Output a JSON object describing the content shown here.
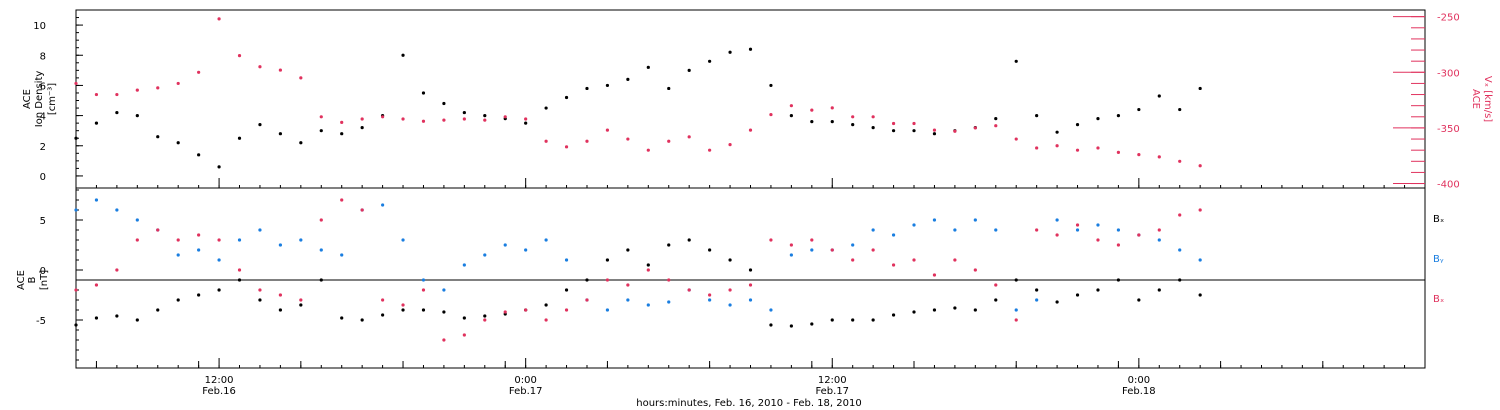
{
  "title": "",
  "colors": {
    "black": "#000000",
    "pink": "#e0325e",
    "blue": "#1a7ee0",
    "axis": "#000000"
  },
  "x_axis": {
    "label": "hours:minutes, Feb. 16, 2010 - Feb. 18, 2010",
    "range_hours": [
      0,
      66
    ],
    "major_ticks": [
      {
        "hour": 7,
        "time": "12:00",
        "date": "Feb.16"
      },
      {
        "hour": 22,
        "time": "0:00",
        "date": "Feb.17"
      },
      {
        "hour": 37,
        "time": "12:00",
        "date": "Feb.17"
      },
      {
        "hour": 52,
        "time": "0:00",
        "date": "Feb.18"
      }
    ]
  },
  "top_panel": {
    "left_axis_title": [
      "ACE",
      "Ion Density",
      "[cm⁻³]"
    ],
    "right_axis_title": [
      "ACE",
      "Vₓ [km/s]"
    ],
    "left_ticks": [
      "0",
      "2",
      "4",
      "6",
      "8",
      "10"
    ],
    "right_ticks": [
      "-250",
      "-300",
      "-350",
      "-400"
    ]
  },
  "bottom_panel": {
    "left_axis_title": [
      "ACE",
      "B",
      "[nT]"
    ],
    "left_ticks": [
      "5",
      "0",
      "-5"
    ],
    "legend": [
      "Bₓ",
      "Bᵧ",
      "Bₓ"
    ]
  },
  "chart_data": [
    {
      "type": "scatter",
      "panel": "top",
      "xlabel": "hours:minutes, Feb. 16, 2010 - Feb. 18, 2010",
      "ylabel": "ACE Ion Density [cm^-3]",
      "ylim": [
        -0.8,
        11
      ],
      "y2label": "ACE Vx [km/s]",
      "y2lim": [
        -404,
        -244
      ],
      "series": [
        {
          "name": "Ion Density",
          "axis": "left",
          "color": "#000000",
          "x": [
            0,
            1,
            2,
            3,
            4,
            5,
            6,
            7,
            8,
            9,
            10,
            11,
            12,
            13,
            14,
            15,
            16,
            17,
            18,
            19,
            20,
            21,
            22,
            23,
            24,
            25,
            26,
            27,
            28,
            29,
            30,
            31,
            32,
            33,
            34,
            35,
            36,
            37,
            38,
            39,
            40,
            41,
            42,
            43,
            44,
            45,
            46,
            47,
            48,
            49,
            50,
            51,
            52,
            53,
            54,
            55
          ],
          "y": [
            2.5,
            3.5,
            4.2,
            4.0,
            2.6,
            2.2,
            1.4,
            0.6,
            2.5,
            3.4,
            2.8,
            2.2,
            3.0,
            2.8,
            3.2,
            4.0,
            8.0,
            5.5,
            4.8,
            4.2,
            4.0,
            3.8,
            3.5,
            4.5,
            5.2,
            5.8,
            6.0,
            6.4,
            7.2,
            5.8,
            7.0,
            7.6,
            8.2,
            8.4,
            6.0,
            4.0,
            3.6,
            3.6,
            3.4,
            3.2,
            3.0,
            3.0,
            2.8,
            3.0,
            3.2,
            3.8,
            7.6,
            4.0,
            2.9,
            3.4,
            3.8,
            4.0,
            4.4,
            5.3,
            4.4,
            5.8
          ]
        },
        {
          "name": "Vx",
          "axis": "right",
          "color": "#e0325e",
          "x": [
            0,
            1,
            2,
            3,
            4,
            5,
            6,
            7,
            8,
            9,
            10,
            11,
            12,
            13,
            14,
            15,
            16,
            17,
            18,
            19,
            20,
            21,
            22,
            23,
            24,
            25,
            26,
            27,
            28,
            29,
            30,
            31,
            32,
            33,
            34,
            35,
            36,
            37,
            38,
            39,
            40,
            41,
            42,
            43,
            44,
            45,
            46,
            47,
            48,
            49,
            50,
            51,
            52,
            53,
            54,
            55
          ],
          "y": [
            -310,
            -320,
            -320,
            -316,
            -314,
            -310,
            -300,
            -252,
            -285,
            -295,
            -298,
            -305,
            -340,
            -345,
            -342,
            -340,
            -342,
            -344,
            -343,
            -342,
            -343,
            -340,
            -342,
            -362,
            -367,
            -362,
            -352,
            -360,
            -370,
            -362,
            -358,
            -370,
            -365,
            -352,
            -338,
            -330,
            -334,
            -332,
            -340,
            -340,
            -346,
            -346,
            -352,
            -353,
            -350,
            -348,
            -360,
            -368,
            -366,
            -370,
            -368,
            -372,
            -374,
            -376,
            -380,
            -384
          ]
        }
      ]
    },
    {
      "type": "scatter",
      "panel": "bottom",
      "xlabel": "hours:minutes, Feb. 16, 2010 - Feb. 18, 2010",
      "ylabel": "ACE B [nT]",
      "ylim": [
        -9.8,
        8.2
      ],
      "series": [
        {
          "name": "Bx",
          "color": "#000000",
          "x": [
            0,
            1,
            2,
            3,
            4,
            5,
            6,
            7,
            8,
            9,
            10,
            11,
            12,
            13,
            14,
            15,
            16,
            17,
            18,
            19,
            20,
            21,
            22,
            23,
            24,
            25,
            26,
            27,
            28,
            29,
            30,
            31,
            32,
            33,
            34,
            35,
            36,
            37,
            38,
            39,
            40,
            41,
            42,
            43,
            44,
            45,
            46,
            47,
            48,
            49,
            50,
            51,
            52,
            53,
            54,
            55
          ],
          "y": [
            -5.5,
            -4.8,
            -4.6,
            -5.0,
            -4.0,
            -3.0,
            -2.5,
            -2.0,
            -1.0,
            -3.0,
            -4.0,
            -3.5,
            -1.0,
            -4.8,
            -5.0,
            -4.5,
            -4.0,
            -4.0,
            -4.2,
            -4.8,
            -4.6,
            -4.4,
            -4.0,
            -3.5,
            -2.0,
            -1.0,
            1.0,
            2.0,
            0.5,
            2.5,
            3.0,
            2.0,
            1.0,
            0.0,
            -5.5,
            -5.6,
            -5.4,
            -5.0,
            -5.0,
            -5.0,
            -4.5,
            -4.2,
            -4.0,
            -3.8,
            -4.0,
            -3.0,
            -1.0,
            -2.0,
            -3.2,
            -2.5,
            -2.0,
            -1.0,
            -3.0,
            -2.0,
            -1.0,
            -2.5
          ]
        },
        {
          "name": "By",
          "color": "#1a7ee0",
          "x": [
            0,
            1,
            2,
            3,
            4,
            5,
            6,
            7,
            8,
            9,
            10,
            11,
            12,
            13,
            14,
            15,
            16,
            17,
            18,
            19,
            20,
            21,
            22,
            23,
            24,
            25,
            26,
            27,
            28,
            29,
            30,
            31,
            32,
            33,
            34,
            35,
            36,
            37,
            38,
            39,
            40,
            41,
            42,
            43,
            44,
            45,
            46,
            47,
            48,
            49,
            50,
            51,
            52,
            53,
            54,
            55
          ],
          "y": [
            6.0,
            7.0,
            6.0,
            5.0,
            4.0,
            1.5,
            2.0,
            1.0,
            3.0,
            4.0,
            2.5,
            3.0,
            2.0,
            1.5,
            6.0,
            6.5,
            3.0,
            -1.0,
            -2.0,
            0.5,
            1.5,
            2.5,
            2.0,
            3.0,
            1.0,
            -3.0,
            -4.0,
            -3.0,
            -3.5,
            -3.2,
            -2.0,
            -3.0,
            -3.5,
            -3.0,
            -4.0,
            1.5,
            2.0,
            2.0,
            2.5,
            4.0,
            3.5,
            4.5,
            5.0,
            4.0,
            5.0,
            4.0,
            -4.0,
            -3.0,
            5.0,
            4.0,
            4.5,
            4.0,
            3.5,
            3.0,
            2.0,
            1.0
          ]
        },
        {
          "name": "Bz",
          "color": "#e0325e",
          "x": [
            0,
            1,
            2,
            3,
            4,
            5,
            6,
            7,
            8,
            9,
            10,
            11,
            12,
            13,
            14,
            15,
            16,
            17,
            18,
            19,
            20,
            21,
            22,
            23,
            24,
            25,
            26,
            27,
            28,
            29,
            30,
            31,
            32,
            33,
            34,
            35,
            36,
            37,
            38,
            39,
            40,
            41,
            42,
            43,
            44,
            45,
            46,
            47,
            48,
            49,
            50,
            51,
            52,
            53,
            54,
            55
          ],
          "y": [
            -2.0,
            -1.5,
            0.0,
            3.0,
            4.0,
            3.0,
            3.5,
            3.0,
            0.0,
            -2.0,
            -2.5,
            -3.0,
            5.0,
            7.0,
            6.0,
            -3.0,
            -3.5,
            -2.0,
            -7.0,
            -6.5,
            -5.0,
            -4.2,
            -4.0,
            -5.0,
            -4.0,
            -3.0,
            -1.0,
            -1.5,
            0.0,
            -1.0,
            -2.0,
            -2.5,
            -2.0,
            -1.5,
            3.0,
            2.5,
            3.0,
            2.0,
            1.0,
            2.0,
            0.5,
            1.0,
            -0.5,
            1.0,
            0.0,
            -1.5,
            -5.0,
            4.0,
            3.5,
            4.5,
            3.0,
            2.5,
            3.5,
            4.0,
            5.5,
            6.0
          ]
        }
      ]
    }
  ]
}
